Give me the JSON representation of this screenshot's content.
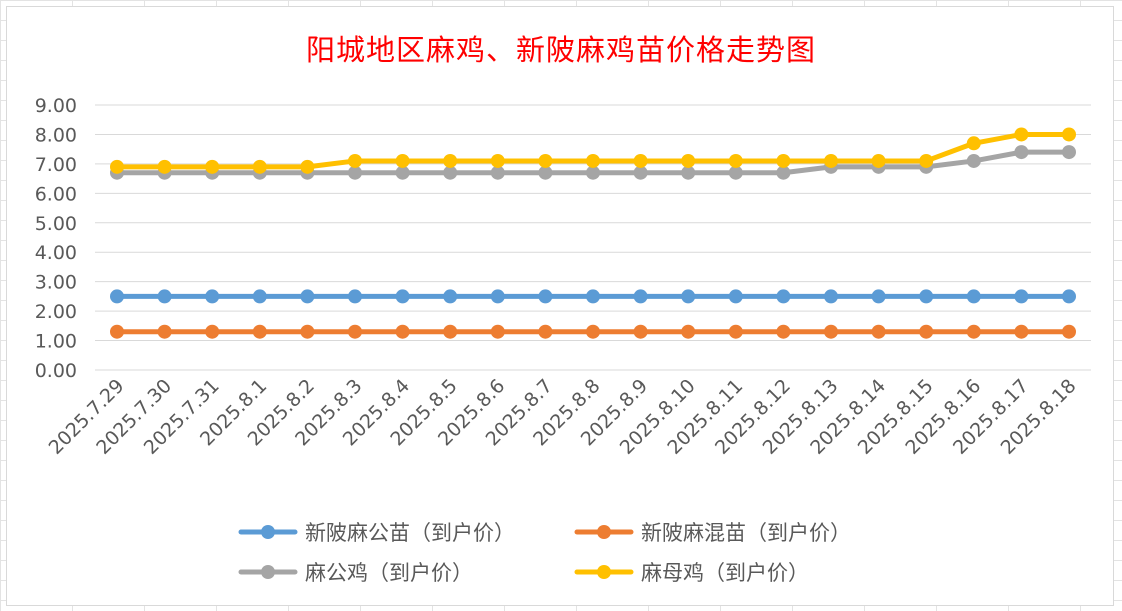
{
  "chart_data": {
    "type": "line",
    "title": "阳城地区麻鸡、新陂麻鸡苗价格走势图",
    "categories": [
      "2025.7.29",
      "2025.7.30",
      "2025.7.31",
      "2025.8.1",
      "2025.8.2",
      "2025.8.3",
      "2025.8.4",
      "2025.8.5",
      "2025.8.6",
      "2025.8.7",
      "2025.8.8",
      "2025.8.9",
      "2025.8.10",
      "2025.8.11",
      "2025.8.12",
      "2025.8.13",
      "2025.8.14",
      "2025.8.15",
      "2025.8.16",
      "2025.8.17",
      "2025.8.18"
    ],
    "y_ticks": [
      "0.00",
      "1.00",
      "2.00",
      "3.00",
      "4.00",
      "5.00",
      "6.00",
      "7.00",
      "8.00",
      "9.00"
    ],
    "ylim": [
      0,
      9
    ],
    "grid": true,
    "legend_position": "bottom",
    "series": [
      {
        "name": "新陂麻公苗（到户价）",
        "color": "#5b9bd5",
        "values": [
          2.5,
          2.5,
          2.5,
          2.5,
          2.5,
          2.5,
          2.5,
          2.5,
          2.5,
          2.5,
          2.5,
          2.5,
          2.5,
          2.5,
          2.5,
          2.5,
          2.5,
          2.5,
          2.5,
          2.5,
          2.5
        ]
      },
      {
        "name": "新陂麻混苗（到户价）",
        "color": "#ed7d31",
        "values": [
          1.3,
          1.3,
          1.3,
          1.3,
          1.3,
          1.3,
          1.3,
          1.3,
          1.3,
          1.3,
          1.3,
          1.3,
          1.3,
          1.3,
          1.3,
          1.3,
          1.3,
          1.3,
          1.3,
          1.3,
          1.3
        ]
      },
      {
        "name": "麻公鸡（到户价）",
        "color": "#a5a5a5",
        "values": [
          6.7,
          6.7,
          6.7,
          6.7,
          6.7,
          6.7,
          6.7,
          6.7,
          6.7,
          6.7,
          6.7,
          6.7,
          6.7,
          6.7,
          6.7,
          6.9,
          6.9,
          6.9,
          7.1,
          7.4,
          7.4
        ]
      },
      {
        "name": "麻母鸡（到户价）",
        "color": "#ffc000",
        "values": [
          6.9,
          6.9,
          6.9,
          6.9,
          6.9,
          7.1,
          7.1,
          7.1,
          7.1,
          7.1,
          7.1,
          7.1,
          7.1,
          7.1,
          7.1,
          7.1,
          7.1,
          7.1,
          7.7,
          8.0,
          8.0
        ]
      }
    ]
  }
}
